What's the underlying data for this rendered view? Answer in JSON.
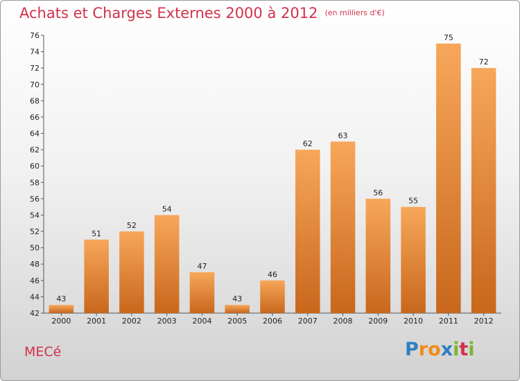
{
  "title": "Achats et Charges Externes 2000 à 2012",
  "subtitle": "(en milliers d'€)",
  "commune": "MECé",
  "logo": {
    "letters": [
      "P",
      "r",
      "o",
      "x",
      "i",
      "t",
      "i"
    ],
    "colors": [
      "#2f7fc1",
      "#f28a1a",
      "#f28a1a",
      "#2f7fc1",
      "#7bb62a",
      "#d2314a",
      "#7bb62a"
    ]
  },
  "colors": {
    "accent": "#d2314a",
    "bar_light": "#f7a75a",
    "bar_dark": "#c8671c"
  },
  "chart_data": {
    "type": "bar",
    "title": "Achats et Charges Externes 2000 à 2012",
    "subtitle": "(en milliers d'€)",
    "xlabel": "",
    "ylabel": "",
    "categories": [
      "2000",
      "2001",
      "2002",
      "2003",
      "2004",
      "2005",
      "2006",
      "2007",
      "2008",
      "2009",
      "2010",
      "2011",
      "2012"
    ],
    "values": [
      43,
      51,
      52,
      54,
      47,
      43,
      46,
      62,
      63,
      56,
      55,
      75,
      72
    ],
    "ylim": [
      42,
      76
    ],
    "yticks": [
      42,
      44,
      46,
      48,
      50,
      52,
      54,
      56,
      58,
      60,
      62,
      64,
      66,
      68,
      70,
      72,
      74,
      76
    ],
    "grid": false,
    "data_labels": true
  }
}
